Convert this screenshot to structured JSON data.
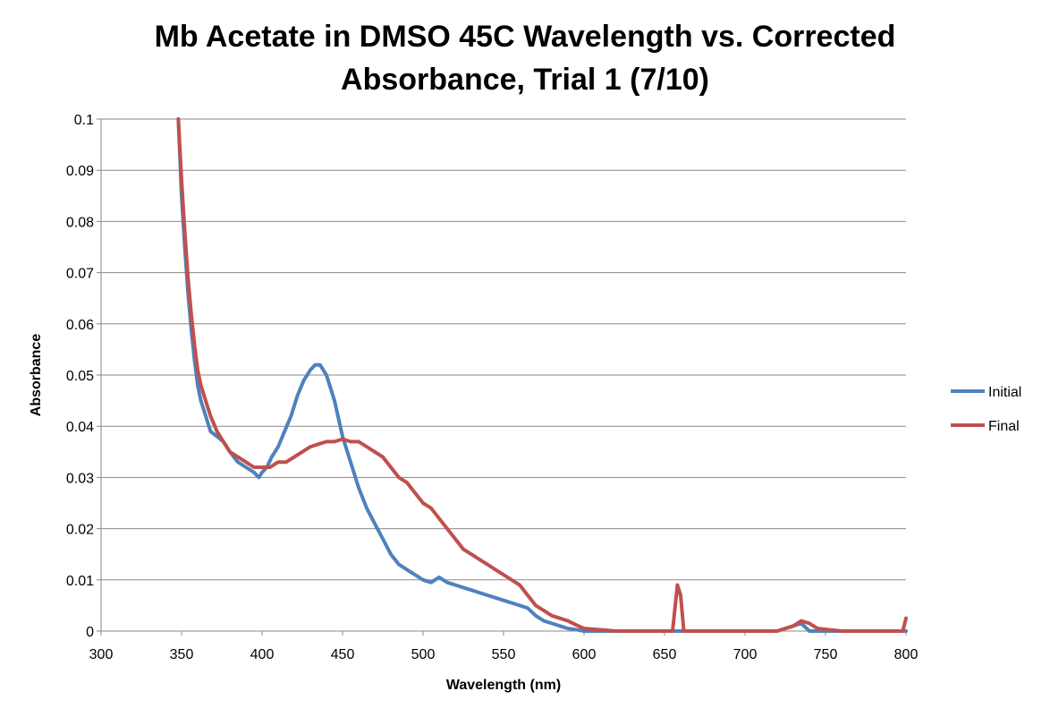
{
  "chart_data": {
    "type": "line",
    "title_line1": "Mb Acetate in DMSO 45C Wavelength vs. Corrected",
    "title_line2": "Absorbance, Trial 1 (7/10)",
    "xlabel": "Wavelength (nm)",
    "ylabel": "Absorbance",
    "xlim": [
      300,
      800
    ],
    "ylim": [
      0,
      0.1
    ],
    "x_ticks": [
      "300",
      "350",
      "400",
      "450",
      "500",
      "550",
      "600",
      "650",
      "700",
      "750",
      "800"
    ],
    "y_ticks": [
      "0",
      "0.01",
      "0.02",
      "0.03",
      "0.04",
      "0.05",
      "0.06",
      "0.07",
      "0.08",
      "0.09",
      "0.1"
    ],
    "grid": "horizontal",
    "legend": "right",
    "series": [
      {
        "name": "Initial",
        "color": "#4F81BD",
        "x": [
          348,
          350,
          352,
          354,
          356,
          358,
          360,
          362,
          365,
          368,
          372,
          376,
          380,
          385,
          390,
          395,
          398,
          400,
          403,
          406,
          410,
          414,
          418,
          422,
          426,
          430,
          433,
          436,
          440,
          445,
          450,
          455,
          460,
          465,
          470,
          475,
          480,
          485,
          490,
          495,
          500,
          505,
          510,
          515,
          520,
          525,
          530,
          535,
          540,
          545,
          550,
          555,
          560,
          565,
          570,
          575,
          580,
          585,
          590,
          595,
          600,
          620,
          640,
          660,
          680,
          698,
          700,
          720,
          735,
          740,
          760,
          767,
          780,
          790,
          800
        ],
        "y": [
          0.1,
          0.085,
          0.075,
          0.066,
          0.059,
          0.053,
          0.048,
          0.045,
          0.042,
          0.039,
          0.038,
          0.037,
          0.035,
          0.033,
          0.032,
          0.031,
          0.03,
          0.031,
          0.032,
          0.034,
          0.036,
          0.039,
          0.042,
          0.046,
          0.049,
          0.051,
          0.052,
          0.052,
          0.05,
          0.045,
          0.038,
          0.033,
          0.028,
          0.024,
          0.021,
          0.018,
          0.015,
          0.013,
          0.012,
          0.011,
          0.01,
          0.0095,
          0.0105,
          0.0095,
          0.009,
          0.0085,
          0.008,
          0.0075,
          0.007,
          0.0065,
          0.006,
          0.0055,
          0.005,
          0.0045,
          0.003,
          0.002,
          0.0015,
          0.001,
          0.0005,
          0.0003,
          0.0,
          0.0,
          0.0,
          0.0,
          0.0,
          0.0,
          0.0,
          0.0,
          0.0015,
          0.0,
          0.0,
          0.0,
          0.0,
          0.0,
          0.0
        ]
      },
      {
        "name": "Final",
        "color": "#C0504D",
        "x": [
          348,
          350,
          352,
          354,
          356,
          358,
          360,
          362,
          365,
          368,
          372,
          376,
          380,
          385,
          390,
          395,
          400,
          405,
          410,
          415,
          420,
          425,
          430,
          435,
          440,
          445,
          450,
          455,
          460,
          465,
          470,
          475,
          480,
          485,
          490,
          495,
          500,
          505,
          510,
          515,
          520,
          525,
          530,
          535,
          540,
          545,
          550,
          555,
          560,
          565,
          570,
          575,
          580,
          585,
          590,
          595,
          600,
          620,
          640,
          655,
          658,
          660,
          662,
          680,
          700,
          720,
          730,
          735,
          740,
          745,
          760,
          780,
          798,
          800
        ],
        "y": [
          0.1,
          0.088,
          0.078,
          0.069,
          0.062,
          0.056,
          0.051,
          0.048,
          0.045,
          0.042,
          0.039,
          0.037,
          0.035,
          0.034,
          0.033,
          0.032,
          0.032,
          0.032,
          0.033,
          0.033,
          0.034,
          0.035,
          0.036,
          0.0365,
          0.037,
          0.037,
          0.0375,
          0.037,
          0.037,
          0.036,
          0.035,
          0.034,
          0.032,
          0.03,
          0.029,
          0.027,
          0.025,
          0.024,
          0.022,
          0.02,
          0.018,
          0.016,
          0.015,
          0.014,
          0.013,
          0.012,
          0.011,
          0.01,
          0.009,
          0.007,
          0.005,
          0.004,
          0.003,
          0.0025,
          0.002,
          0.0012,
          0.0005,
          0.0,
          0.0,
          0.0,
          0.009,
          0.007,
          0.0,
          0.0,
          0.0,
          0.0,
          0.001,
          0.002,
          0.0015,
          0.0005,
          0.0,
          0.0,
          0.0,
          0.0025
        ]
      }
    ]
  }
}
